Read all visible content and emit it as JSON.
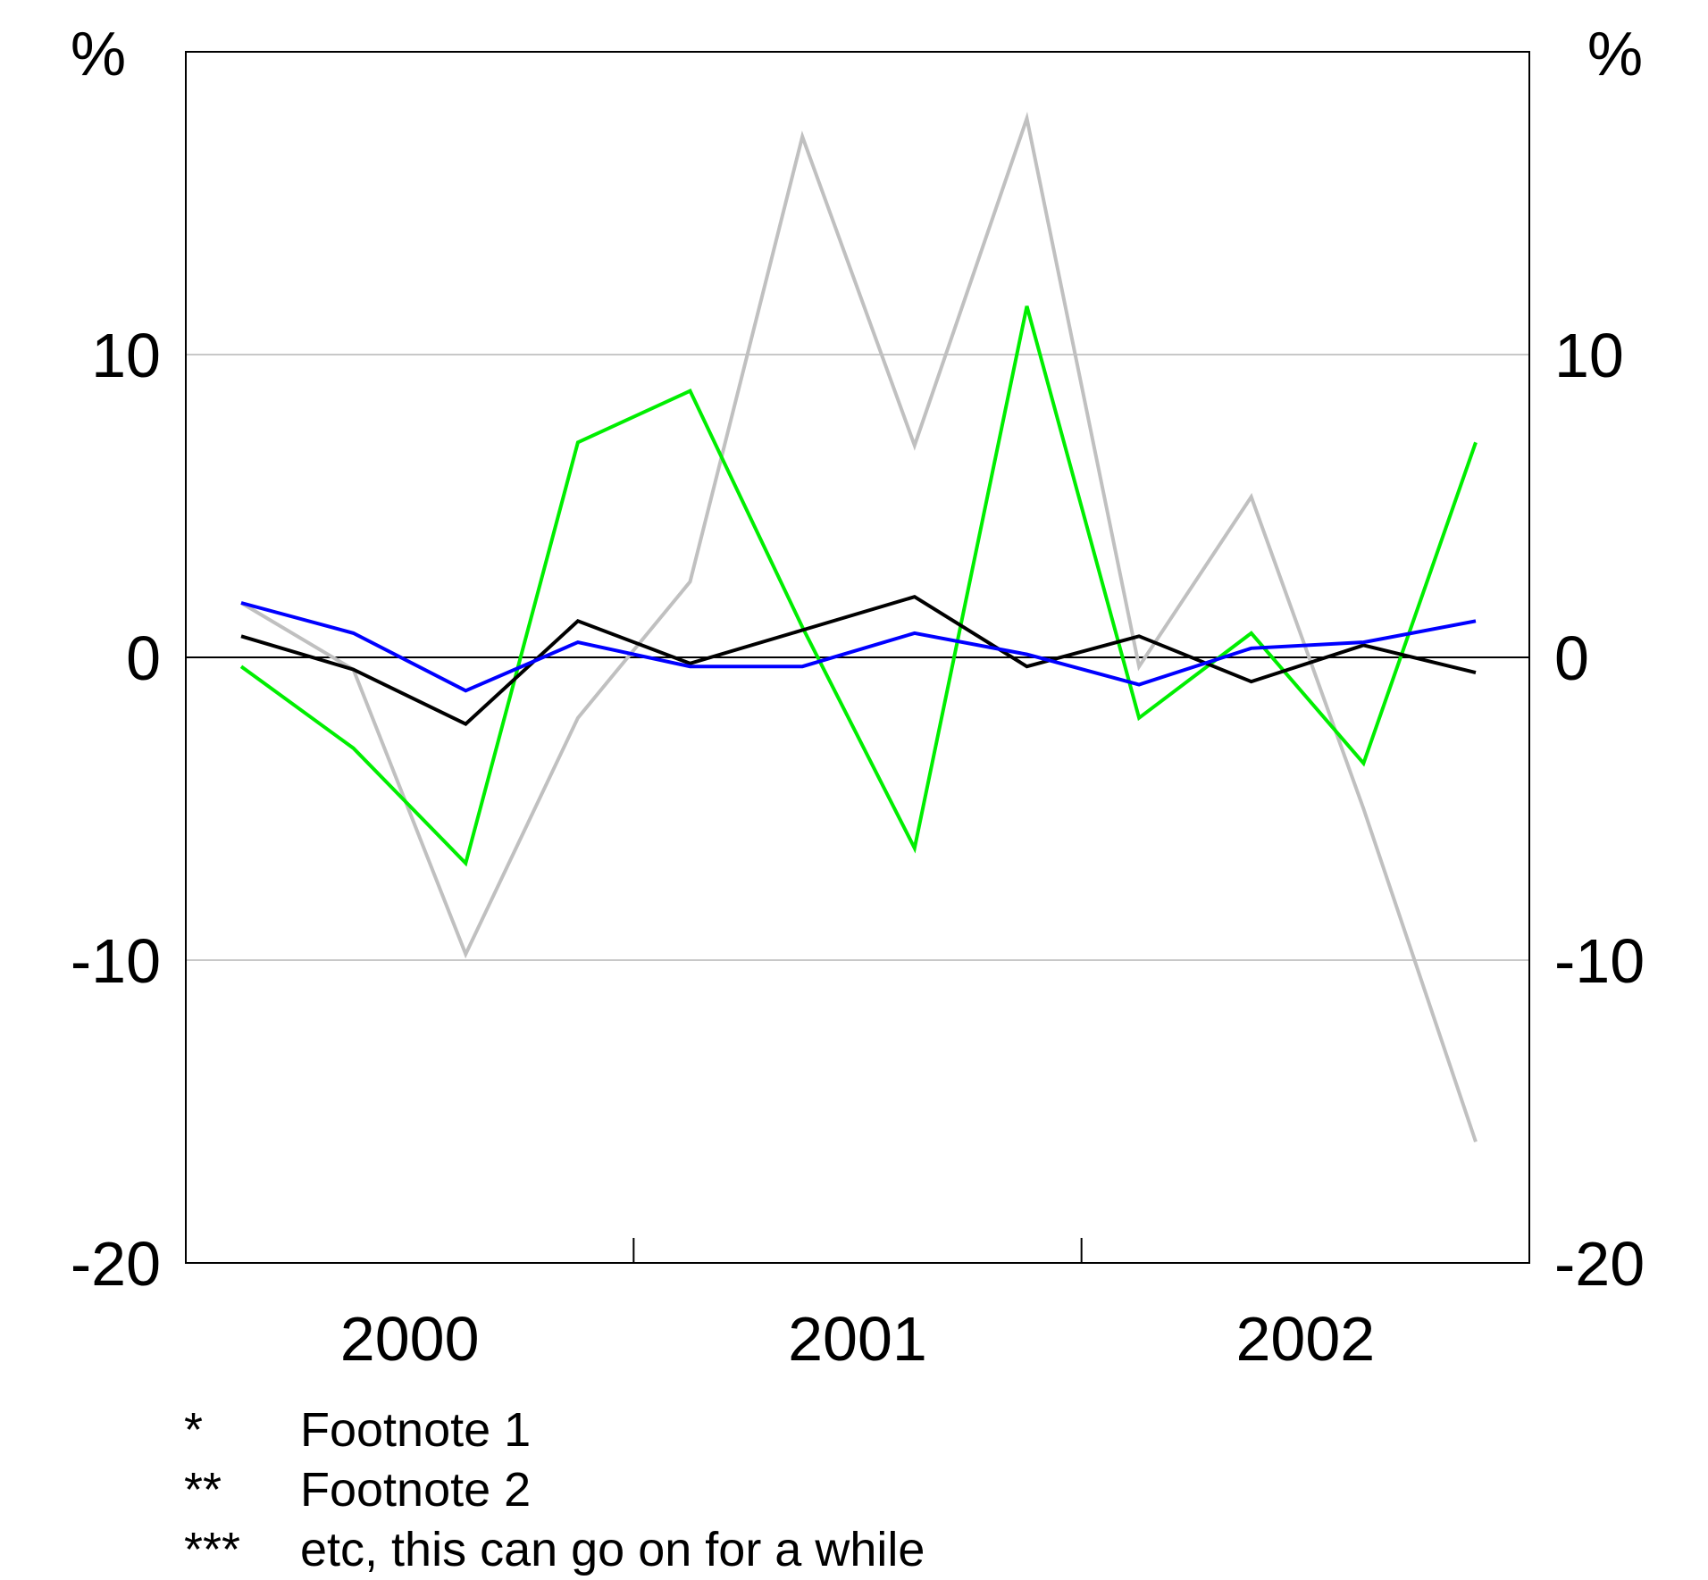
{
  "chart_data": {
    "type": "line",
    "title": "",
    "xlabel": "",
    "ylabel": "",
    "y_unit_left": "%",
    "y_unit_right": "%",
    "ylim": [
      -20,
      20
    ],
    "yticks": [
      -20,
      -10,
      0,
      10
    ],
    "x_year_labels": [
      "2000",
      "2001",
      "2002"
    ],
    "grid": true,
    "gridline_values": [
      -10,
      10
    ],
    "zero_line": true,
    "series": [
      {
        "color": "#c0c0c0",
        "values": [
          1.8,
          -0.4,
          -9.8,
          -2.0,
          2.5,
          17.2,
          7.0,
          17.8,
          -0.3,
          5.3,
          -5.0,
          -16.0
        ]
      },
      {
        "color": "#00ee00",
        "values": [
          -0.3,
          -3.0,
          -6.8,
          7.1,
          8.8,
          1.0,
          -6.3,
          11.6,
          -2.0,
          0.8,
          -3.5,
          7.1
        ]
      },
      {
        "color": "#000000",
        "values": [
          0.7,
          -0.4,
          -2.2,
          1.2,
          -0.2,
          0.9,
          2.0,
          -0.3,
          0.7,
          -0.8,
          0.4,
          -0.5
        ]
      },
      {
        "color": "#0000ff",
        "values": [
          1.8,
          0.8,
          -1.1,
          0.5,
          -0.3,
          -0.3,
          0.8,
          0.1,
          -0.9,
          0.3,
          0.5,
          1.2
        ]
      }
    ]
  },
  "footnotes": [
    {
      "mark": "*",
      "text": "Footnote 1"
    },
    {
      "mark": "**",
      "text": "Footnote 2"
    },
    {
      "mark": "***",
      "text": "etc, this can go on for a while"
    }
  ]
}
